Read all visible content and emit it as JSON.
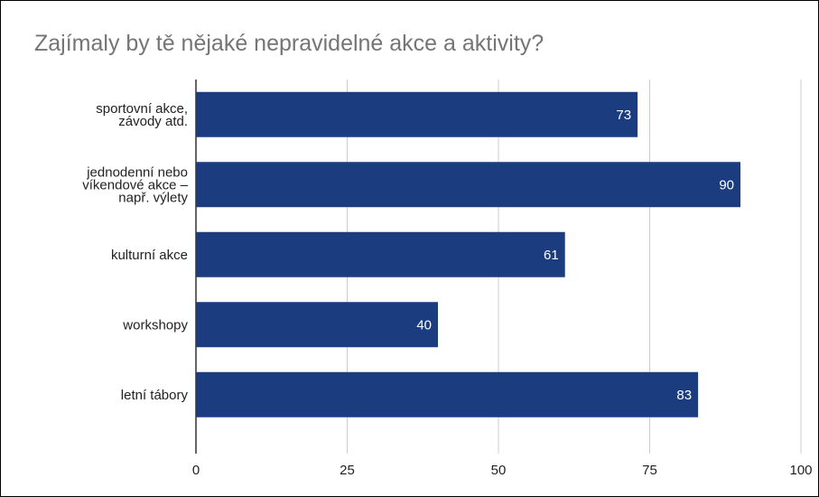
{
  "chart_data": {
    "type": "bar",
    "orientation": "horizontal",
    "title": "Zajímaly by tě nějaké nepravidelné akce a aktivity?",
    "categories": [
      [
        "sportovní akce,",
        "závody atd."
      ],
      [
        "jednodenní nebo",
        "víkendové akce –",
        "např. výlety"
      ],
      [
        "kulturní akce"
      ],
      [
        "workshopy"
      ],
      [
        "letní tábory"
      ]
    ],
    "values": [
      73,
      90,
      61,
      40,
      83
    ],
    "xlim": [
      0,
      100
    ],
    "xticks": [
      0,
      25,
      50,
      75,
      100
    ],
    "xlabel": "",
    "ylabel": "",
    "grid": true,
    "legend": "none",
    "bar_color": "#1c3c80",
    "data_labels": true
  }
}
